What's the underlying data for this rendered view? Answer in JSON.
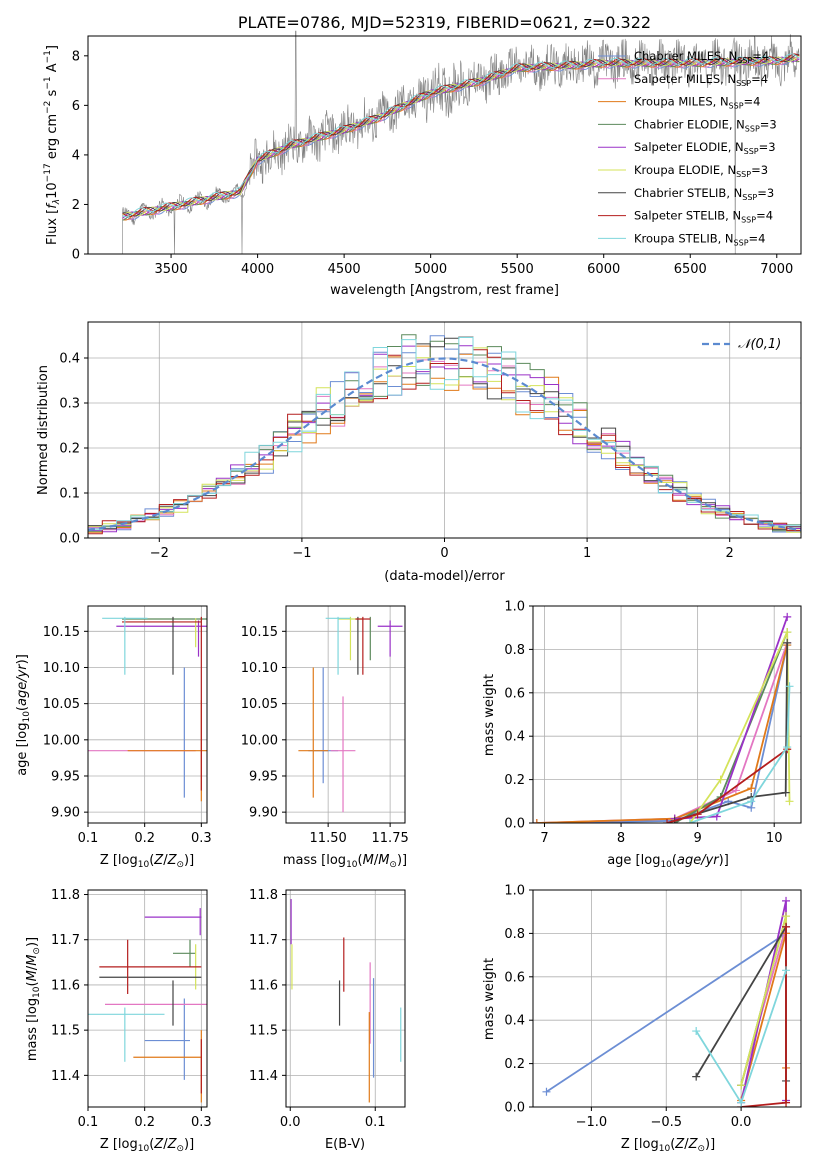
{
  "colors": {
    "Chabrier MILES": "#6c8ed4",
    "Salpeter MILES": "#e377c2",
    "Kroupa MILES": "#e07a1a",
    "Chabrier ELODIE": "#5b8a5b",
    "Salpeter ELODIE": "#9a32c8",
    "Kroupa ELODIE": "#d4e35a",
    "Chabrier STELIB": "#444444",
    "Salpeter STELIB": "#b41e1e",
    "Kroupa STELIB": "#7fd6dc",
    "spectrum": "#808080"
  },
  "chart_data": [
    {
      "id": "spectrum",
      "type": "line",
      "title": "PLATE=0786, MJD=52319, FIBERID=0621, z=0.322",
      "xlabel": "wavelength [Angstrom, rest frame]",
      "ylabel": "Flux [f_λ 10^-17 erg cm^-2 s^-1 A^-1]",
      "xlim": [
        3020,
        7140
      ],
      "ylim": [
        0,
        8.8
      ],
      "xticks": [
        "3500",
        "4000",
        "4500",
        "5000",
        "5500",
        "6000",
        "6500",
        "7000"
      ],
      "yticks": [
        "0",
        "2",
        "4",
        "6",
        "8"
      ],
      "grid": false,
      "legend_position": "top-right",
      "legend": [
        {
          "key": "Chabrier MILES",
          "label": "Chabrier MILES, N",
          "nssp": "4"
        },
        {
          "key": "Salpeter MILES",
          "label": "Salpeter MILES, N",
          "nssp": "4"
        },
        {
          "key": "Kroupa MILES",
          "label": "Kroupa MILES, N",
          "nssp": "4"
        },
        {
          "key": "Chabrier ELODIE",
          "label": "Chabrier ELODIE, N",
          "nssp": "3"
        },
        {
          "key": "Salpeter ELODIE",
          "label": "Salpeter ELODIE, N",
          "nssp": "3"
        },
        {
          "key": "Kroupa ELODIE",
          "label": "Kroupa ELODIE, N",
          "nssp": "3"
        },
        {
          "key": "Chabrier STELIB",
          "label": "Chabrier STELIB, N",
          "nssp": "3"
        },
        {
          "key": "Salpeter STELIB",
          "label": "Salpeter STELIB, N",
          "nssp": "4"
        },
        {
          "key": "Kroupa STELIB",
          "label": "Kroupa STELIB, N",
          "nssp": "4"
        }
      ],
      "nssp_subscript": "SSP",
      "continuum": [
        [
          3220,
          1.5
        ],
        [
          3350,
          1.7
        ],
        [
          3500,
          1.9
        ],
        [
          3700,
          2.2
        ],
        [
          3900,
          2.5
        ],
        [
          4000,
          3.8
        ],
        [
          4200,
          4.4
        ],
        [
          4500,
          5.0
        ],
        [
          4700,
          5.5
        ],
        [
          5000,
          6.5
        ],
        [
          5300,
          7.0
        ],
        [
          5500,
          7.5
        ],
        [
          5800,
          7.6
        ],
        [
          6000,
          7.7
        ],
        [
          6500,
          7.7
        ],
        [
          7000,
          7.8
        ],
        [
          7100,
          7.9
        ]
      ]
    },
    {
      "id": "residuals",
      "type": "area",
      "xlabel": "(data-model)/error",
      "ylabel": "Normed distribution",
      "xlim": [
        -2.5,
        2.5
      ],
      "ylim": [
        0,
        0.48
      ],
      "xticks": [
        "−2",
        "−1",
        "0",
        "1",
        "2"
      ],
      "yticks": [
        "0.0",
        "0.1",
        "0.2",
        "0.3",
        "0.4"
      ],
      "grid": true,
      "legend_position": "top-right",
      "reference": {
        "label": "𝒩(0,1)",
        "mean": 0,
        "sigma": 1,
        "color": "#5b8ad0",
        "style": "dashed"
      },
      "bin_width": 0.1
    },
    {
      "id": "age-vs-Z",
      "type": "scatter",
      "xlabel": "Z [log10(Z/Z⊙)]",
      "ylabel": "age  [log10(age/yr)]",
      "xlim": [
        0.1,
        0.31
      ],
      "ylim": [
        9.885,
        10.185
      ],
      "xticks": [
        "0.1",
        "0.2",
        "0.3"
      ],
      "yticks": [
        "9.90",
        "9.95",
        "10.00",
        "10.05",
        "10.10",
        "10.15"
      ],
      "grid": true,
      "points": [
        {
          "s": "Chabrier MILES",
          "x": 0.27,
          "xerr": 0.0,
          "y": 10.01,
          "yerr": 0.09
        },
        {
          "s": "Salpeter MILES",
          "x": 0.19,
          "xerr": 0.1,
          "y": 9.985,
          "yerr": 0.0
        },
        {
          "s": "Kroupa MILES",
          "x": 0.3,
          "xerr": 0.0,
          "y": 9.985,
          "yerr": 0.07
        },
        {
          "s": "Kroupa MILES",
          "x": 0.24,
          "xerr": 0.07,
          "y": 9.985,
          "yerr": 0.0
        },
        {
          "s": "Chabrier ELODIE",
          "x": 0.24,
          "xerr": 0.08,
          "y": 10.167,
          "yerr": 0.0
        },
        {
          "s": "Salpeter ELODIE",
          "x": 0.23,
          "xerr": 0.08,
          "y": 10.157,
          "yerr": 0.0
        },
        {
          "s": "Salpeter ELODIE",
          "x": 0.295,
          "xerr": 0.0,
          "y": 10.14,
          "yerr": 0.025
        },
        {
          "s": "Kroupa ELODIE",
          "x": 0.29,
          "xerr": 0.0,
          "y": 10.148,
          "yerr": 0.02
        },
        {
          "s": "Chabrier STELIB",
          "x": 0.25,
          "xerr": 0.0,
          "y": 10.13,
          "yerr": 0.04
        },
        {
          "s": "Salpeter STELIB",
          "x": 0.23,
          "xerr": 0.07,
          "y": 10.163,
          "yerr": 0.0
        },
        {
          "s": "Salpeter STELIB",
          "x": 0.3,
          "xerr": 0.0,
          "y": 10.05,
          "yerr": 0.12
        },
        {
          "s": "Kroupa STELIB",
          "x": 0.165,
          "xerr": 0.04,
          "y": 10.168,
          "yerr": 0.0
        },
        {
          "s": "Kroupa STELIB",
          "x": 0.165,
          "xerr": 0.0,
          "y": 10.13,
          "yerr": 0.04
        }
      ]
    },
    {
      "id": "age-vs-mass",
      "type": "scatter",
      "xlabel": "mass [log10(M/M⊙)]",
      "ylabel": "",
      "xlim": [
        11.33,
        11.81
      ],
      "ylim": [
        9.885,
        10.185
      ],
      "xticks": [
        "11.50",
        "11.75"
      ],
      "yticks": [
        "9.90",
        "9.95",
        "10.00",
        "10.05",
        "10.10",
        "10.15"
      ],
      "grid": true,
      "points": [
        {
          "s": "Chabrier MILES",
          "x": 11.48,
          "xerr": 0.0,
          "y": 10.02,
          "yerr": 0.08
        },
        {
          "s": "Chabrier MILES",
          "x": 11.48,
          "xerr": 0.06,
          "y": 9.985,
          "yerr": 0.0
        },
        {
          "s": "Salpeter MILES",
          "x": 11.56,
          "xerr": 0.0,
          "y": 9.98,
          "yerr": 0.08
        },
        {
          "s": "Salpeter MILES",
          "x": 11.56,
          "xerr": 0.05,
          "y": 9.985,
          "yerr": 0.0
        },
        {
          "s": "Kroupa MILES",
          "x": 11.44,
          "xerr": 0.0,
          "y": 10.01,
          "yerr": 0.09
        },
        {
          "s": "Kroupa MILES",
          "x": 11.44,
          "xerr": 0.06,
          "y": 9.985,
          "yerr": 0.0
        },
        {
          "s": "Chabrier ELODIE",
          "x": 11.67,
          "xerr": 0.0,
          "y": 10.14,
          "yerr": 0.03
        },
        {
          "s": "Salpeter ELODIE",
          "x": 11.75,
          "xerr": 0.05,
          "y": 10.157,
          "yerr": 0.0
        },
        {
          "s": "Salpeter ELODIE",
          "x": 11.75,
          "xerr": 0.0,
          "y": 10.14,
          "yerr": 0.025
        },
        {
          "s": "Kroupa ELODIE",
          "x": 11.59,
          "xerr": 0.05,
          "y": 10.167,
          "yerr": 0.0
        },
        {
          "s": "Kroupa ELODIE",
          "x": 11.59,
          "xerr": 0.0,
          "y": 10.14,
          "yerr": 0.03
        },
        {
          "s": "Chabrier STELIB",
          "x": 11.62,
          "xerr": 0.0,
          "y": 10.13,
          "yerr": 0.04
        },
        {
          "s": "Salpeter STELIB",
          "x": 11.64,
          "xerr": 0.03,
          "y": 10.167,
          "yerr": 0.0
        },
        {
          "s": "Salpeter STELIB",
          "x": 11.64,
          "xerr": 0.0,
          "y": 10.13,
          "yerr": 0.04
        },
        {
          "s": "Kroupa STELIB",
          "x": 11.54,
          "xerr": 0.05,
          "y": 10.168,
          "yerr": 0.0
        },
        {
          "s": "Kroupa STELIB",
          "x": 11.54,
          "xerr": 0.0,
          "y": 10.13,
          "yerr": 0.04
        }
      ]
    },
    {
      "id": "weight-vs-age",
      "type": "line",
      "xlabel": "age  [log10(age/yr)]",
      "ylabel": "mass weight",
      "xlim": [
        6.85,
        10.35
      ],
      "ylim": [
        0,
        1.0
      ],
      "xticks": [
        "7",
        "8",
        "9",
        "10"
      ],
      "yticks": [
        "0.0",
        "0.2",
        "0.4",
        "0.6",
        "0.8",
        "1.0"
      ],
      "grid": true,
      "series": [
        {
          "s": "Chabrier MILES",
          "x": [
            6.9,
            8.7,
            9.4,
            9.7,
            10.17
          ],
          "y": [
            0.0,
            0.01,
            0.1,
            0.07,
            0.82
          ]
        },
        {
          "s": "Salpeter MILES",
          "x": [
            6.9,
            8.7,
            9.5,
            10.17
          ],
          "y": [
            0.0,
            0.02,
            0.15,
            0.83
          ]
        },
        {
          "s": "Kroupa MILES",
          "x": [
            6.9,
            8.7,
            9.7,
            10.17
          ],
          "y": [
            0.0,
            0.02,
            0.16,
            0.82
          ]
        },
        {
          "s": "Chabrier ELODIE",
          "x": [
            8.7,
            9.3,
            10.17
          ],
          "y": [
            0.0,
            0.12,
            0.88
          ]
        },
        {
          "s": "Salpeter ELODIE",
          "x": [
            8.7,
            9.25,
            10.17
          ],
          "y": [
            0.02,
            0.03,
            0.95
          ]
        },
        {
          "s": "Kroupa ELODIE",
          "x": [
            8.9,
            9.3,
            10.17,
            10.2
          ],
          "y": [
            0.0,
            0.2,
            0.88,
            0.1
          ]
        },
        {
          "s": "Chabrier STELIB",
          "x": [
            8.7,
            9.7,
            10.15,
            10.17
          ],
          "y": [
            0.01,
            0.12,
            0.14,
            0.83
          ]
        },
        {
          "s": "Salpeter STELIB",
          "x": [
            8.6,
            9.0,
            10.17
          ],
          "y": [
            0.0,
            0.04,
            0.34
          ]
        },
        {
          "s": "Kroupa STELIB",
          "x": [
            8.9,
            9.7,
            10.17,
            10.2
          ],
          "y": [
            0.0,
            0.1,
            0.35,
            0.63
          ]
        }
      ]
    },
    {
      "id": "mass-vs-Z",
      "type": "scatter",
      "xlabel": "Z [log10(Z/Z⊙)]",
      "ylabel": "mass [log10(M/M⊙)]",
      "xlim": [
        0.1,
        0.31
      ],
      "ylim": [
        11.33,
        11.81
      ],
      "xticks": [
        "0.1",
        "0.2",
        "0.3"
      ],
      "yticks": [
        "11.4",
        "11.5",
        "11.6",
        "11.7",
        "11.8"
      ],
      "grid": true,
      "points": [
        {
          "s": "Chabrier MILES",
          "x": 0.27,
          "xerr": 0.0,
          "y": 11.48,
          "yerr": 0.09
        },
        {
          "s": "Chabrier MILES",
          "x": 0.24,
          "xerr": 0.04,
          "y": 11.477,
          "yerr": 0.0
        },
        {
          "s": "Salpeter MILES",
          "x": 0.24,
          "xerr": 0.11,
          "y": 11.557,
          "yerr": 0.0
        },
        {
          "s": "Kroupa MILES",
          "x": 0.3,
          "xerr": 0.0,
          "y": 11.42,
          "yerr": 0.08
        },
        {
          "s": "Kroupa MILES",
          "x": 0.24,
          "xerr": 0.06,
          "y": 11.44,
          "yerr": 0.0
        },
        {
          "s": "Chabrier ELODIE",
          "x": 0.28,
          "xerr": 0.0,
          "y": 11.67,
          "yerr": 0.03
        },
        {
          "s": "Chabrier ELODIE",
          "x": 0.27,
          "xerr": 0.02,
          "y": 11.67,
          "yerr": 0.0
        },
        {
          "s": "Salpeter ELODIE",
          "x": 0.25,
          "xerr": 0.05,
          "y": 11.75,
          "yerr": 0.0
        },
        {
          "s": "Salpeter ELODIE",
          "x": 0.298,
          "xerr": 0.0,
          "y": 11.74,
          "yerr": 0.03
        },
        {
          "s": "Kroupa ELODIE",
          "x": 0.29,
          "xerr": 0.0,
          "y": 11.64,
          "yerr": 0.05
        },
        {
          "s": "Chabrier STELIB",
          "x": 0.25,
          "xerr": 0.0,
          "y": 11.56,
          "yerr": 0.05
        },
        {
          "s": "Chabrier STELIB",
          "x": 0.21,
          "xerr": 0.09,
          "y": 11.617,
          "yerr": 0.0
        },
        {
          "s": "Salpeter STELIB",
          "x": 0.21,
          "xerr": 0.09,
          "y": 11.64,
          "yerr": 0.0
        },
        {
          "s": "Salpeter STELIB",
          "x": 0.17,
          "xerr": 0.0,
          "y": 11.64,
          "yerr": 0.06
        },
        {
          "s": "Salpeter STELIB",
          "x": 0.3,
          "xerr": 0.0,
          "y": 11.42,
          "yerr": 0.06
        },
        {
          "s": "Kroupa STELIB",
          "x": 0.165,
          "xerr": 0.07,
          "y": 11.535,
          "yerr": 0.0
        },
        {
          "s": "Kroupa STELIB",
          "x": 0.165,
          "xerr": 0.0,
          "y": 11.49,
          "yerr": 0.06
        }
      ]
    },
    {
      "id": "mass-vs-EBV",
      "type": "scatter",
      "xlabel": "E(B-V)",
      "ylabel": "",
      "xlim": [
        -0.005,
        0.135
      ],
      "ylim": [
        11.33,
        11.81
      ],
      "xticks": [
        "0.0",
        "0.1"
      ],
      "yticks": [
        "11.4",
        "11.5",
        "11.6",
        "11.7",
        "11.8"
      ],
      "grid": true,
      "points": [
        {
          "s": "Salpeter ELODIE",
          "x": 0.001,
          "xerr": 0.0,
          "y": 11.74,
          "yerr": 0.05
        },
        {
          "s": "Kroupa ELODIE",
          "x": 0.002,
          "xerr": 0.0,
          "y": 11.64,
          "yerr": 0.05
        },
        {
          "s": "Salpeter STELIB",
          "x": 0.063,
          "xerr": 0.0,
          "y": 11.645,
          "yerr": 0.06
        },
        {
          "s": "Chabrier STELIB",
          "x": 0.058,
          "xerr": 0.0,
          "y": 11.56,
          "yerr": 0.05
        },
        {
          "s": "Salpeter MILES",
          "x": 0.094,
          "xerr": 0.0,
          "y": 11.56,
          "yerr": 0.09
        },
        {
          "s": "Kroupa MILES",
          "x": 0.093,
          "xerr": 0.0,
          "y": 11.44,
          "yerr": 0.1
        },
        {
          "s": "Chabrier MILES",
          "x": 0.098,
          "xerr": 0.0,
          "y": 11.505,
          "yerr": 0.11
        },
        {
          "s": "Kroupa STELIB",
          "x": 0.13,
          "xerr": 0.0,
          "y": 11.49,
          "yerr": 0.06
        }
      ]
    },
    {
      "id": "weight-vs-Z",
      "type": "line",
      "xlabel": "Z [log10(Z/Z⊙)]",
      "ylabel": "mass weight",
      "xlim": [
        -1.39,
        0.4
      ],
      "ylim": [
        0,
        1.0
      ],
      "xticks": [
        "−1.0",
        "−0.5",
        "0.0"
      ],
      "yticks": [
        "0.0",
        "0.2",
        "0.4",
        "0.6",
        "0.8",
        "1.0"
      ],
      "grid": true,
      "series": [
        {
          "s": "Chabrier MILES",
          "x": [
            -1.3,
            0.3
          ],
          "y": [
            0.07,
            0.8
          ]
        },
        {
          "s": "Salpeter MILES",
          "x": [
            0.0,
            0.3
          ],
          "y": [
            0.1,
            0.83
          ]
        },
        {
          "s": "Kroupa MILES",
          "x": [
            0.0,
            0.3,
            0.3
          ],
          "y": [
            0.03,
            0.8,
            0.18
          ]
        },
        {
          "s": "Chabrier ELODIE",
          "x": [
            0.0,
            0.3
          ],
          "y": [
            0.1,
            0.88
          ]
        },
        {
          "s": "Salpeter ELODIE",
          "x": [
            0.0,
            0.3,
            0.3
          ],
          "y": [
            0.02,
            0.95,
            0.03
          ]
        },
        {
          "s": "Kroupa ELODIE",
          "x": [
            0.0,
            0.3,
            0.3
          ],
          "y": [
            0.1,
            0.88,
            0.02
          ]
        },
        {
          "s": "Chabrier STELIB",
          "x": [
            -0.3,
            0.3,
            0.3
          ],
          "y": [
            0.14,
            0.83,
            0.12
          ]
        },
        {
          "s": "Salpeter STELIB",
          "x": [
            0.0,
            0.3,
            0.3
          ],
          "y": [
            0.0,
            0.02,
            0.83
          ]
        },
        {
          "s": "Kroupa STELIB",
          "x": [
            -0.3,
            0.0,
            0.3
          ],
          "y": [
            0.35,
            0.02,
            0.63
          ]
        }
      ]
    }
  ]
}
